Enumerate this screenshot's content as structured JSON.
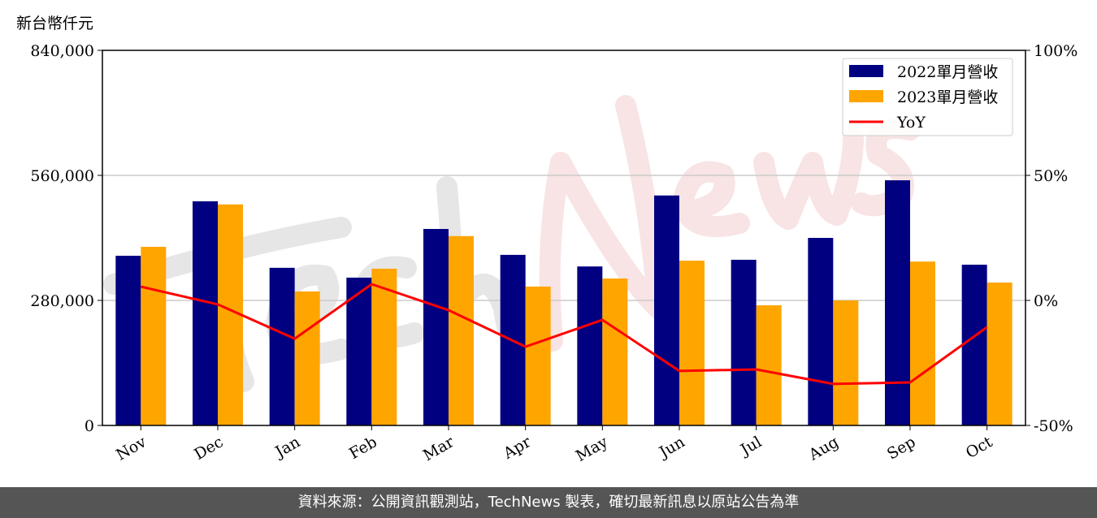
{
  "unit_label": "新台幣仟元",
  "footer": "資料來源：公開資訊觀測站，TechNews 製表，確切最新訊息以原站公告為準",
  "watermark": "TechNews",
  "chart_data": {
    "type": "bar",
    "categories": [
      "Nov",
      "Dec",
      "Jan",
      "Feb",
      "Mar",
      "Apr",
      "May",
      "Jun",
      "Jul",
      "Aug",
      "Sep",
      "Oct"
    ],
    "series": [
      {
        "name": "2022單月營收",
        "type": "bar",
        "color": "#000080",
        "values": [
          380000,
          502000,
          353000,
          331000,
          440000,
          382000,
          356000,
          515000,
          371000,
          420000,
          549000,
          360000
        ]
      },
      {
        "name": "2023單月營收",
        "type": "bar",
        "color": "#FFA500",
        "values": [
          400000,
          495000,
          300000,
          351000,
          424000,
          311000,
          329000,
          369000,
          269000,
          280000,
          367000,
          320000
        ]
      },
      {
        "name": "YoY",
        "type": "line",
        "axis": "right",
        "color": "#FF0000",
        "values": [
          5.5,
          -1.6,
          -15.3,
          6.5,
          -3.9,
          -18.5,
          -7.8,
          -28.2,
          -27.6,
          -33.4,
          -32.8,
          -10.7
        ]
      }
    ],
    "ylim": [
      0,
      840000
    ],
    "yticks": [
      "0",
      "280,000",
      "560,000",
      "840,000"
    ],
    "y2lim": [
      -50,
      100
    ],
    "y2ticks": [
      "-50%",
      "0%",
      "50%",
      "100%"
    ],
    "grid": "horizontal",
    "legend": "top-right"
  }
}
